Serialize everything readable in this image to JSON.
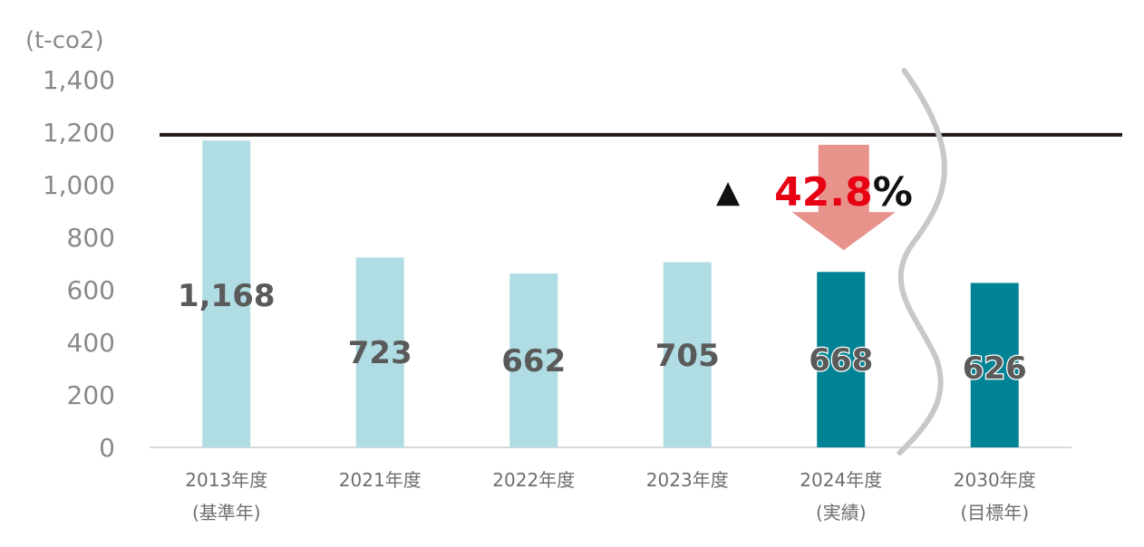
{
  "chart_data": {
    "type": "bar",
    "unit": "(t-co2)",
    "categories": [
      {
        "line1": "2013年度",
        "line2": "(基準年)"
      },
      {
        "line1": "2021年度",
        "line2": ""
      },
      {
        "line1": "2022年度",
        "line2": ""
      },
      {
        "line1": "2023年度",
        "line2": ""
      },
      {
        "line1": "2024年度",
        "line2": "(実績)"
      },
      {
        "line1": "2030年度",
        "line2": "(目標年)"
      }
    ],
    "values": [
      1168,
      723,
      662,
      705,
      668,
      626
    ],
    "value_labels": [
      "1,168",
      "723",
      "662",
      "705",
      "668",
      "626"
    ],
    "ylim": [
      0,
      1400
    ],
    "yticks": [
      0,
      200,
      400,
      600,
      800,
      1000,
      1200,
      1400
    ],
    "ytick_labels": [
      "0",
      "200",
      "400",
      "600",
      "800",
      "1,000",
      "1,200",
      "1,400"
    ],
    "reference_line": 1190,
    "axis_break_between": [
      4,
      5
    ],
    "grid": false,
    "annotation": {
      "prefix": "▲",
      "value": "42.8",
      "suffix": "%"
    },
    "colors": {
      "light_bar": "#b0dde4",
      "dark_bar": "#008495",
      "arrow": "#e8928c",
      "highlight_text": "#e60012",
      "axis_text": "#8a8a8a",
      "value_text": "#5a5a5a",
      "reference_line": "#231815"
    },
    "highlighted_bars": [
      4,
      5
    ]
  }
}
